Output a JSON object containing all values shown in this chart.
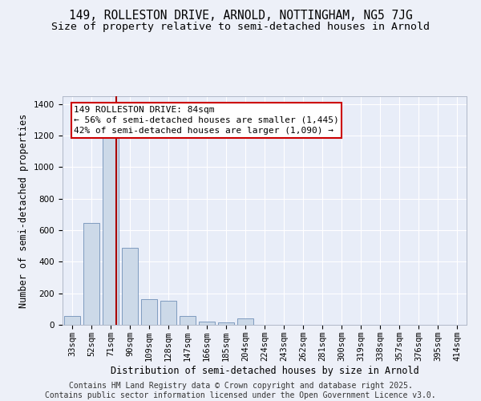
{
  "title_line1": "149, ROLLESTON DRIVE, ARNOLD, NOTTINGHAM, NG5 7JG",
  "title_line2": "Size of property relative to semi-detached houses in Arnold",
  "xlabel": "Distribution of semi-detached houses by size in Arnold",
  "ylabel": "Number of semi-detached properties",
  "categories": [
    "33sqm",
    "52sqm",
    "71sqm",
    "90sqm",
    "109sqm",
    "128sqm",
    "147sqm",
    "166sqm",
    "185sqm",
    "204sqm",
    "224sqm",
    "243sqm",
    "262sqm",
    "281sqm",
    "300sqm",
    "319sqm",
    "338sqm",
    "357sqm",
    "376sqm",
    "395sqm",
    "414sqm"
  ],
  "values": [
    55,
    645,
    1245,
    490,
    165,
    155,
    55,
    20,
    15,
    40,
    0,
    0,
    0,
    0,
    0,
    0,
    0,
    0,
    0,
    0,
    0
  ],
  "bar_color": "#ccd9e8",
  "bar_edge_color": "#7090b8",
  "vline_x_pos": 2.3,
  "vline_color": "#aa0000",
  "annotation_text": "149 ROLLESTON DRIVE: 84sqm\n← 56% of semi-detached houses are smaller (1,445)\n42% of semi-detached houses are larger (1,090) →",
  "annotation_box_color": "#ffffff",
  "annotation_box_edge_color": "#cc0000",
  "ylim": [
    0,
    1450
  ],
  "yticks": [
    0,
    200,
    400,
    600,
    800,
    1000,
    1200,
    1400
  ],
  "background_color": "#edf0f8",
  "plot_background_color": "#e8edf8",
  "footer_text": "Contains HM Land Registry data © Crown copyright and database right 2025.\nContains public sector information licensed under the Open Government Licence v3.0.",
  "title_fontsize": 10.5,
  "subtitle_fontsize": 9.5,
  "axis_label_fontsize": 8.5,
  "tick_fontsize": 7.5,
  "annotation_fontsize": 8,
  "footer_fontsize": 7
}
